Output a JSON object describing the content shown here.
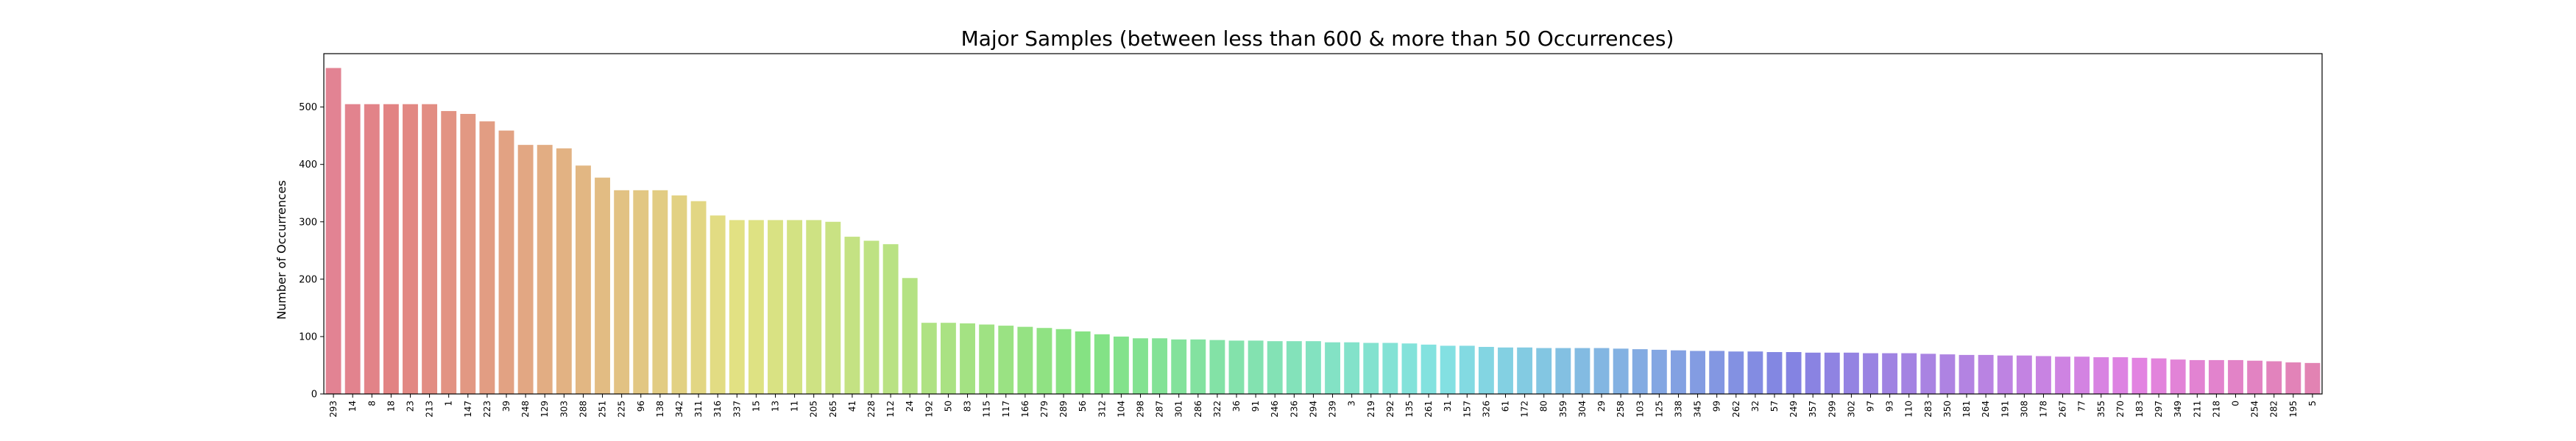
{
  "chart_data": {
    "type": "bar",
    "title": "Major Samples (between less than 600 & more than 50 Occurrences)",
    "xlabel": "",
    "ylabel": "Number of Occurrences",
    "ylim": [
      0,
      593
    ],
    "yticks": [
      0,
      100,
      200,
      300,
      400,
      500
    ],
    "grid": false,
    "legend": "none",
    "categories": [
      "293",
      "14",
      "8",
      "18",
      "23",
      "213",
      "1",
      "147",
      "223",
      "39",
      "248",
      "129",
      "303",
      "288",
      "251",
      "225",
      "96",
      "138",
      "342",
      "311",
      "316",
      "337",
      "15",
      "13",
      "11",
      "205",
      "265",
      "41",
      "228",
      "112",
      "24",
      "192",
      "50",
      "83",
      "115",
      "117",
      "166",
      "279",
      "289",
      "56",
      "312",
      "104",
      "298",
      "287",
      "301",
      "286",
      "322",
      "36",
      "91",
      "246",
      "236",
      "294",
      "239",
      "3",
      "219",
      "292",
      "135",
      "261",
      "31",
      "157",
      "326",
      "61",
      "172",
      "80",
      "359",
      "304",
      "29",
      "258",
      "103",
      "125",
      "338",
      "345",
      "99",
      "262",
      "32",
      "57",
      "249",
      "357",
      "299",
      "302",
      "97",
      "93",
      "110",
      "283",
      "350",
      "181",
      "264",
      "191",
      "308",
      "178",
      "267",
      "77",
      "355",
      "270",
      "183",
      "297",
      "349",
      "211",
      "218",
      "0",
      "254",
      "282",
      "195",
      "5"
    ],
    "values": [
      568,
      505,
      505,
      505,
      505,
      505,
      493,
      488,
      475,
      459,
      434,
      434,
      428,
      398,
      377,
      355,
      355,
      355,
      346,
      336,
      311,
      303,
      303,
      303,
      303,
      303,
      300,
      274,
      267,
      261,
      202,
      124,
      124,
      123,
      121,
      119,
      117,
      115,
      113,
      109,
      104,
      100,
      97,
      97,
      95,
      95,
      94,
      93,
      93,
      92,
      92,
      92,
      90,
      90,
      89,
      89,
      88,
      86,
      84,
      84,
      82,
      81,
      81,
      80,
      80,
      80,
      80,
      79,
      78,
      77,
      76,
      75,
      75,
      74,
      74,
      73,
      73,
      72,
      72,
      72,
      71,
      71,
      71,
      70,
      69,
      68,
      68,
      67,
      67,
      66,
      65,
      65,
      64,
      64,
      63,
      62,
      60,
      59,
      59,
      59,
      58,
      57,
      55,
      54
    ]
  }
}
